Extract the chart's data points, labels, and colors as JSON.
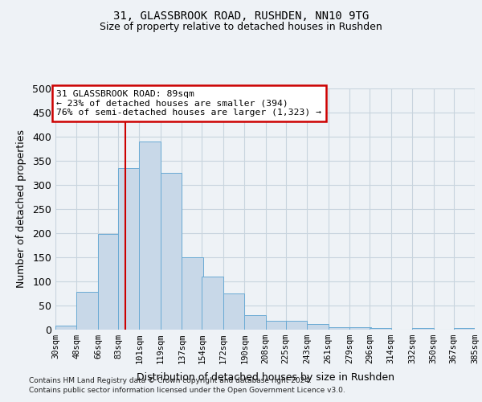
{
  "title1": "31, GLASSBROOK ROAD, RUSHDEN, NN10 9TG",
  "title2": "Size of property relative to detached houses in Rushden",
  "xlabel": "Distribution of detached houses by size in Rushden",
  "ylabel": "Number of detached properties",
  "bins": [
    "30sqm",
    "48sqm",
    "66sqm",
    "83sqm",
    "101sqm",
    "119sqm",
    "137sqm",
    "154sqm",
    "172sqm",
    "190sqm",
    "208sqm",
    "225sqm",
    "243sqm",
    "261sqm",
    "279sqm",
    "296sqm",
    "314sqm",
    "332sqm",
    "350sqm",
    "367sqm",
    "385sqm"
  ],
  "bin_edges": [
    30,
    48,
    66,
    83,
    101,
    119,
    137,
    154,
    172,
    190,
    208,
    225,
    243,
    261,
    279,
    296,
    314,
    332,
    350,
    367,
    385
  ],
  "values": [
    8,
    78,
    198,
    335,
    390,
    325,
    150,
    110,
    75,
    30,
    18,
    18,
    12,
    5,
    5,
    3,
    0,
    3,
    0,
    3
  ],
  "bar_color": "#c8d8e8",
  "bar_edge_color": "#6aaad4",
  "grid_color": "#c8d4de",
  "vline_x": 89,
  "vline_color": "#cc0000",
  "annotation_text": "31 GLASSBROOK ROAD: 89sqm\n← 23% of detached houses are smaller (394)\n76% of semi-detached houses are larger (1,323) →",
  "annotation_box_color": "#ffffff",
  "annotation_box_edge": "#cc0000",
  "ylim": [
    0,
    500
  ],
  "yticks": [
    0,
    50,
    100,
    150,
    200,
    250,
    300,
    350,
    400,
    450,
    500
  ],
  "footnote1": "Contains HM Land Registry data © Crown copyright and database right 2024.",
  "footnote2": "Contains public sector information licensed under the Open Government Licence v3.0.",
  "bg_color": "#eef2f6"
}
